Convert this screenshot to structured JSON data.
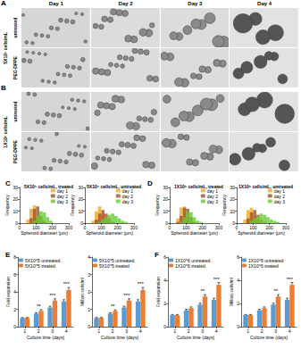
{
  "figure": {
    "columns": [
      "Day 1",
      "Day 2",
      "Day 3",
      "Day 4"
    ],
    "micrograph_panels": [
      {
        "label": "A",
        "cells": "5X10⁵ cells/mL",
        "rows": [
          "untreated",
          "PEG-DPPE"
        ]
      },
      {
        "label": "B",
        "cells": "1X10⁶ cells/mL",
        "rows": [
          "untreated",
          "PEG-DPPE"
        ]
      }
    ],
    "chart_panels": [
      "C",
      "D",
      "E",
      "F"
    ]
  },
  "chart_data": [
    {
      "type": "histogram",
      "title": "5X10⁵ cells/mL, treated",
      "x_label": "Spheroid diameter (µm)",
      "y_label": "Frequency",
      "bins": [
        40,
        60,
        80,
        100,
        120,
        140,
        160,
        180,
        200,
        220,
        240,
        260
      ],
      "series": [
        {
          "name": "day 1",
          "color": "#f5a623",
          "values": [
            3,
            12,
            15,
            6,
            1,
            0,
            0,
            0,
            0,
            0,
            0
          ]
        },
        {
          "name": "day 2",
          "color": "#a0522d",
          "values": [
            0,
            4,
            12,
            14,
            6,
            2,
            0,
            0,
            0,
            0,
            0
          ]
        },
        {
          "name": "day 3",
          "color": "#66cc33",
          "values": [
            0,
            0,
            2,
            6,
            10,
            9,
            5,
            2,
            0,
            0,
            0
          ]
        }
      ],
      "xlim": [
        0,
        300
      ],
      "xticks": [
        0,
        100,
        200,
        300
      ],
      "ylim": [
        0,
        30
      ],
      "yticks": [
        0,
        10,
        20,
        30
      ],
      "grid": false,
      "legend": "upper right"
    },
    {
      "type": "histogram",
      "title": "5X10⁵ cells/mL, untreated",
      "x_label": "Spheroid diameter (µm)",
      "y_label": "Frequency",
      "bins": [
        40,
        60,
        80,
        100,
        120,
        140,
        160,
        180,
        200,
        220,
        240,
        260
      ],
      "series": [
        {
          "name": "day 1",
          "color": "#f5a623",
          "values": [
            2,
            10,
            14,
            7,
            2,
            0,
            0,
            0,
            0,
            0,
            0
          ]
        },
        {
          "name": "day 2",
          "color": "#a0522d",
          "values": [
            0,
            3,
            8,
            11,
            8,
            4,
            1,
            0,
            0,
            0,
            0
          ]
        },
        {
          "name": "day 3",
          "color": "#66cc33",
          "values": [
            0,
            0,
            1,
            3,
            5,
            7,
            8,
            6,
            4,
            2,
            1
          ]
        }
      ],
      "xlim": [
        0,
        300
      ],
      "xticks": [
        0,
        100,
        200,
        300
      ],
      "ylim": [
        0,
        30
      ],
      "yticks": [
        0,
        10,
        20,
        30
      ],
      "grid": false,
      "legend": "upper right"
    },
    {
      "type": "histogram",
      "title": "1X10⁶ cells/mL, treated",
      "x_label": "Spheroid diameter (µm)",
      "y_label": "Frequency",
      "bins": [
        40,
        60,
        80,
        100,
        120,
        140,
        160,
        180,
        200,
        220,
        240,
        260
      ],
      "series": [
        {
          "name": "day 1",
          "color": "#f5a623",
          "values": [
            4,
            13,
            14,
            5,
            1,
            0,
            0,
            0,
            0,
            0,
            0
          ]
        },
        {
          "name": "day 2",
          "color": "#a0522d",
          "values": [
            1,
            6,
            13,
            12,
            5,
            1,
            0,
            0,
            0,
            0,
            0
          ]
        },
        {
          "name": "day 3",
          "color": "#66cc33",
          "values": [
            0,
            1,
            5,
            10,
            9,
            5,
            2,
            1,
            0,
            0,
            0
          ]
        }
      ],
      "xlim": [
        0,
        300
      ],
      "xticks": [
        0,
        100,
        200,
        300
      ],
      "ylim": [
        0,
        30
      ],
      "yticks": [
        0,
        10,
        20,
        30
      ],
      "grid": false,
      "legend": "upper right"
    },
    {
      "type": "histogram",
      "title": "1X10⁶ cells/mL, untreated",
      "x_label": "Spheroid diameter (µm)",
      "y_label": "Frequency",
      "bins": [
        40,
        60,
        80,
        100,
        120,
        140,
        160,
        180,
        200,
        220,
        240,
        260
      ],
      "series": [
        {
          "name": "day 1",
          "color": "#f5a623",
          "values": [
            3,
            11,
            13,
            6,
            2,
            0,
            0,
            0,
            0,
            0,
            0
          ]
        },
        {
          "name": "day 2",
          "color": "#a0522d",
          "values": [
            0,
            4,
            9,
            11,
            7,
            3,
            1,
            0,
            0,
            0,
            0
          ]
        },
        {
          "name": "day 3",
          "color": "#66cc33",
          "values": [
            0,
            0,
            2,
            4,
            6,
            8,
            7,
            5,
            3,
            2,
            1
          ]
        }
      ],
      "xlim": [
        0,
        300
      ],
      "xticks": [
        0,
        100,
        200,
        300
      ],
      "ylim": [
        0,
        30
      ],
      "yticks": [
        0,
        10,
        20,
        30
      ],
      "grid": false,
      "legend": "upper right"
    },
    {
      "type": "bar",
      "x_label": "Culture time (days)",
      "y_label": "Fold expansion",
      "categories": [
        "1",
        "2",
        "3",
        "4"
      ],
      "series": [
        {
          "name": "5X10^5 untreated",
          "color": "#5b9bd5",
          "values": [
            1,
            1.5,
            2.2,
            2.9
          ],
          "errors": [
            0.05,
            0.1,
            0.15,
            0.2
          ]
        },
        {
          "name": "5X10^5 treated",
          "color": "#ed7d31",
          "values": [
            1,
            1.8,
            3.0,
            4.2
          ],
          "errors": [
            0.05,
            0.15,
            0.2,
            0.3
          ]
        }
      ],
      "annotations": [
        {
          "category": "2",
          "text": "**"
        },
        {
          "category": "3",
          "text": "***"
        },
        {
          "category": "4",
          "text": "***"
        }
      ],
      "ylim": [
        0,
        8
      ],
      "yticks": [
        0,
        2,
        4,
        6,
        8
      ],
      "grid": false,
      "legend": "upper left"
    },
    {
      "type": "bar",
      "x_label": "Culture time (days)",
      "y_label": "Million cells/ml",
      "categories": [
        "1",
        "2",
        "3",
        "4"
      ],
      "series": [
        {
          "name": "5X10^5 untreated",
          "color": "#5b9bd5",
          "values": [
            0.5,
            0.75,
            1.1,
            1.45
          ],
          "errors": [
            0.03,
            0.05,
            0.08,
            0.1
          ]
        },
        {
          "name": "5X10^5 treated",
          "color": "#ed7d31",
          "values": [
            0.5,
            0.9,
            1.5,
            2.1
          ],
          "errors": [
            0.03,
            0.07,
            0.1,
            0.15
          ]
        }
      ],
      "annotations": [
        {
          "category": "2",
          "text": "**"
        },
        {
          "category": "3",
          "text": "***"
        },
        {
          "category": "4",
          "text": "***"
        }
      ],
      "ylim": [
        0,
        4
      ],
      "yticks": [
        0,
        1,
        2,
        3,
        4
      ],
      "grid": false,
      "legend": "upper left"
    },
    {
      "type": "bar",
      "x_label": "Culture time (days)",
      "y_label": "Fold expansion",
      "categories": [
        "1",
        "2",
        "3",
        "4"
      ],
      "series": [
        {
          "name": "1X10^6 untreated",
          "color": "#5b9bd5",
          "values": [
            1,
            1.4,
            1.9,
            2.3
          ],
          "errors": [
            0.05,
            0.1,
            0.12,
            0.15
          ]
        },
        {
          "name": "1X10^6 treated",
          "color": "#ed7d31",
          "values": [
            1,
            1.6,
            2.6,
            3.6
          ],
          "errors": [
            0.05,
            0.1,
            0.15,
            0.2
          ]
        }
      ],
      "annotations": [
        {
          "category": "3",
          "text": "**"
        },
        {
          "category": "4",
          "text": "***"
        }
      ],
      "ylim": [
        0,
        6
      ],
      "yticks": [
        0,
        2,
        4,
        6
      ],
      "grid": false,
      "legend": "upper left"
    },
    {
      "type": "bar",
      "x_label": "Culture time (days)",
      "y_label": "Million cells/ml",
      "categories": [
        "1",
        "2",
        "3",
        "4"
      ],
      "series": [
        {
          "name": "1X10^6 untreated",
          "color": "#5b9bd5",
          "values": [
            1,
            1.4,
            1.9,
            2.3
          ],
          "errors": [
            0.05,
            0.1,
            0.12,
            0.15
          ]
        },
        {
          "name": "1X10^6 treated",
          "color": "#ed7d31",
          "values": [
            1,
            1.6,
            2.6,
            3.6
          ],
          "errors": [
            0.05,
            0.1,
            0.15,
            0.2
          ]
        }
      ],
      "annotations": [
        {
          "category": "3",
          "text": "**"
        },
        {
          "category": "4",
          "text": "***"
        }
      ],
      "ylim": [
        0,
        6
      ],
      "yticks": [
        0,
        2,
        4,
        6
      ],
      "grid": false,
      "legend": "upper left"
    }
  ]
}
